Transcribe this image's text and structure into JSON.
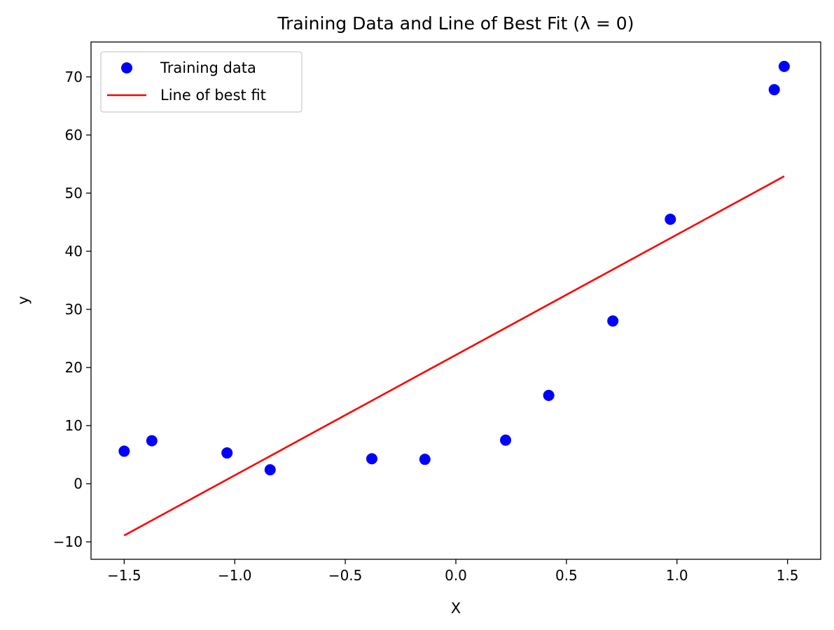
{
  "chart_data": {
    "type": "scatter",
    "title": "Training Data and Line of Best Fit (λ = 0)",
    "xlabel": "X",
    "ylabel": "y",
    "xlim": [
      -1.65,
      1.65
    ],
    "ylim": [
      -13,
      76
    ],
    "xticks": [
      -1.5,
      -1.0,
      -0.5,
      0.0,
      0.5,
      1.0,
      1.5
    ],
    "xtick_labels": [
      "−1.5",
      "−1.0",
      "−0.5",
      "0.0",
      "0.5",
      "1.0",
      "1.5"
    ],
    "yticks": [
      -10,
      0,
      10,
      20,
      30,
      40,
      50,
      60,
      70
    ],
    "ytick_labels": [
      "−10",
      "0",
      "10",
      "20",
      "30",
      "40",
      "50",
      "60",
      "70"
    ],
    "grid": false,
    "legend_position": "top-left",
    "series": [
      {
        "name": "Training data",
        "kind": "scatter",
        "color": "#0000ff",
        "x": [
          -1.5,
          -1.375,
          -1.035,
          -0.84,
          -0.38,
          -0.14,
          0.225,
          0.42,
          0.71,
          0.97,
          1.44,
          1.485
        ],
        "y": [
          5.6,
          7.4,
          5.3,
          2.4,
          4.3,
          4.2,
          7.5,
          15.2,
          28.0,
          45.5,
          67.8,
          71.8
        ]
      },
      {
        "name": "Line of best fit",
        "kind": "line",
        "color": "#ff0000",
        "x": [
          -1.5,
          1.485
        ],
        "y": [
          -8.9,
          52.9
        ]
      }
    ]
  }
}
